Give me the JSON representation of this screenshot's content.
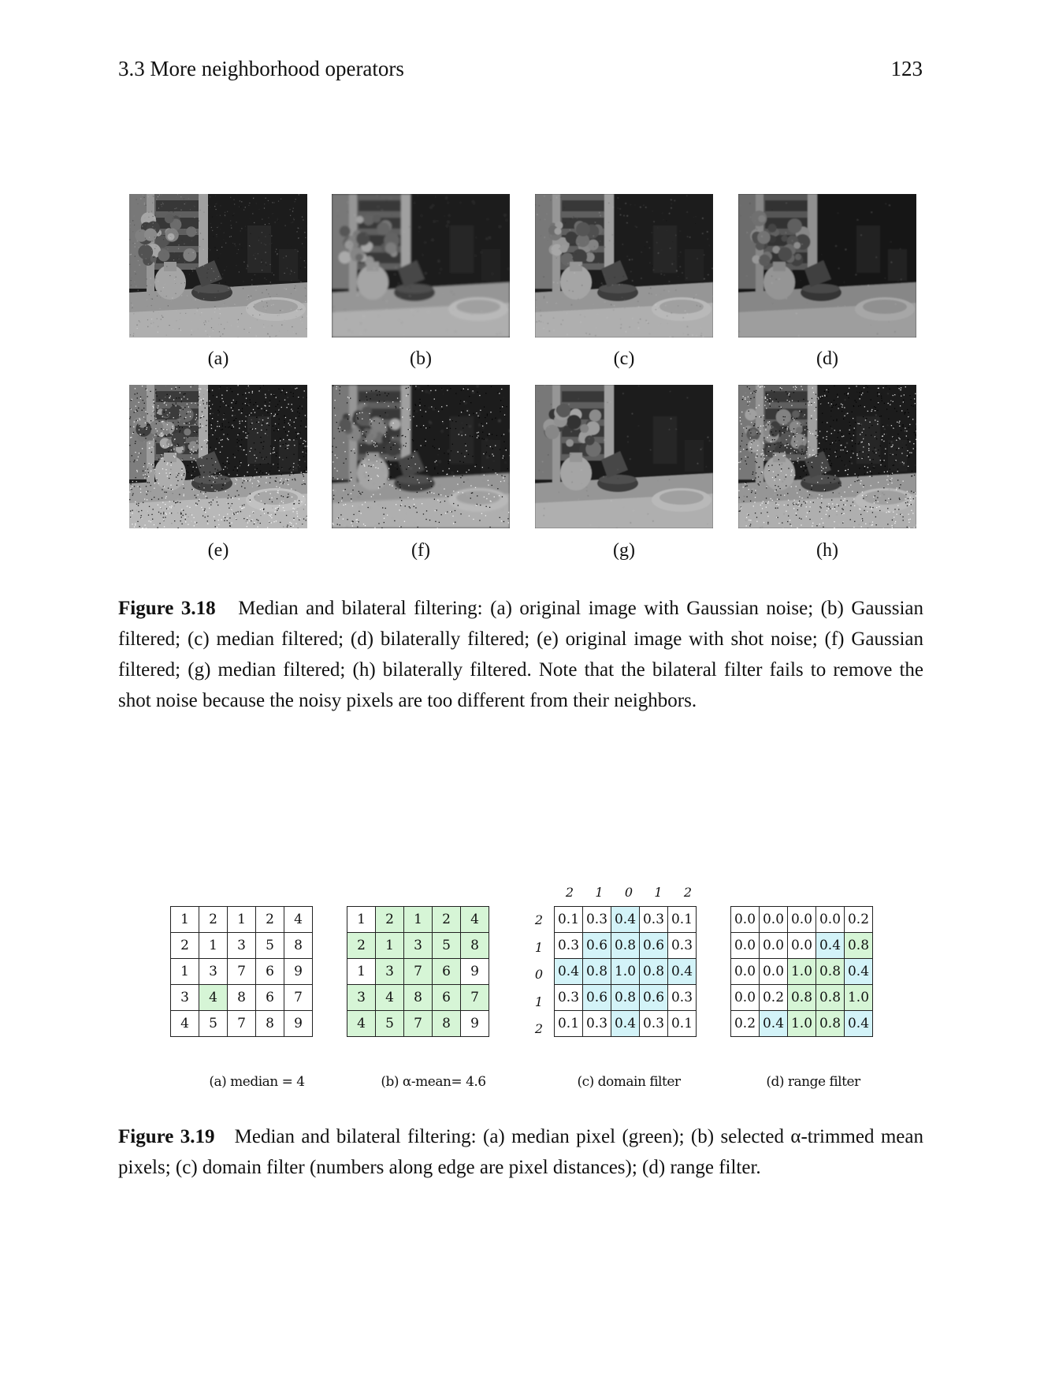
{
  "header": {
    "section": "3.3 More neighborhood operators",
    "page": "123"
  },
  "fig318": {
    "panels": [
      "(a)",
      "(b)",
      "(c)",
      "(d)",
      "(e)",
      "(f)",
      "(g)",
      "(h)"
    ],
    "caption_label": "Figure 3.18",
    "caption_text": "Median and bilateral filtering: (a) original image with Gaussian noise; (b) Gaussian filtered; (c) median filtered; (d) bilaterally filtered; (e) original image with shot noise; (f) Gaussian filtered; (g) median filtered; (h) bilaterally filtered. Note that the bilateral filter fails to remove the shot noise because the noisy pixels are too different from their neighbors."
  },
  "fig319": {
    "axis_cols": [
      "2",
      "1",
      "0",
      "1",
      "2"
    ],
    "axis_rows": [
      "2",
      "1",
      "0",
      "1",
      "2"
    ],
    "grid_a": [
      [
        "1",
        "2",
        "1",
        "2",
        "4"
      ],
      [
        "2",
        "1",
        "3",
        "5",
        "8"
      ],
      [
        "1",
        "3",
        "7",
        "6",
        "9"
      ],
      [
        "3",
        "4",
        "8",
        "6",
        "7"
      ],
      [
        "4",
        "5",
        "7",
        "8",
        "9"
      ]
    ],
    "grid_b": [
      [
        "1",
        "2",
        "1",
        "2",
        "4"
      ],
      [
        "2",
        "1",
        "3",
        "5",
        "8"
      ],
      [
        "1",
        "3",
        "7",
        "6",
        "9"
      ],
      [
        "3",
        "4",
        "8",
        "6",
        "7"
      ],
      [
        "4",
        "5",
        "7",
        "8",
        "9"
      ]
    ],
    "grid_c": [
      [
        "0.1",
        "0.3",
        "0.4",
        "0.3",
        "0.1"
      ],
      [
        "0.3",
        "0.6",
        "0.8",
        "0.6",
        "0.3"
      ],
      [
        "0.4",
        "0.8",
        "1.0",
        "0.8",
        "0.4"
      ],
      [
        "0.3",
        "0.6",
        "0.8",
        "0.6",
        "0.3"
      ],
      [
        "0.1",
        "0.3",
        "0.4",
        "0.3",
        "0.1"
      ]
    ],
    "grid_d": [
      [
        "0.0",
        "0.0",
        "0.0",
        "0.0",
        "0.2"
      ],
      [
        "0.0",
        "0.0",
        "0.0",
        "0.4",
        "0.8"
      ],
      [
        "0.0",
        "0.0",
        "1.0",
        "0.8",
        "0.4"
      ],
      [
        "0.0",
        "0.2",
        "0.8",
        "0.8",
        "1.0"
      ],
      [
        "0.2",
        "0.4",
        "1.0",
        "0.8",
        "0.4"
      ]
    ],
    "labels": {
      "a": "(a) median =   4",
      "b": "(b) α-mean=  4.6",
      "c": "(c) domain filter",
      "d": "(d) range filter"
    },
    "caption_label": "Figure 3.19",
    "caption_text": "Median and bilateral filtering: (a) median pixel (green); (b) selected α-trimmed mean pixels; (c) domain filter (numbers along edge are pixel distances); (d) range filter.",
    "highlight_colors": {
      "green": "#d6f5d6",
      "cyan": "#d3f3f8"
    }
  }
}
